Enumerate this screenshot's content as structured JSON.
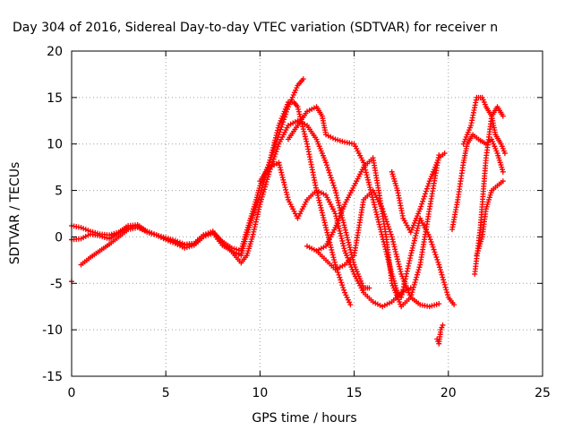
{
  "chart_data": {
    "type": "scatter",
    "title": "Day 304 of 2016, Sidereal Day-to-day VTEC variation (SDTVAR) for receiver n",
    "xlabel": "GPS time / hours",
    "ylabel": "SDTVAR / TECUs",
    "xlim": [
      0,
      25
    ],
    "ylim": [
      -15,
      20
    ],
    "xticks": [
      "0",
      "5",
      "10",
      "15",
      "20",
      "25"
    ],
    "yticks": [
      "-15",
      "-10",
      "-5",
      "0",
      "5",
      "10",
      "15",
      "20"
    ],
    "grid": true,
    "marker": "+",
    "color": "#ff0000",
    "series": [
      {
        "name": "",
        "x": [
          0.0,
          0.5,
          1.0,
          1.5,
          2.0,
          2.5,
          3.0,
          3.5,
          4.0,
          4.5,
          5.0,
          5.5,
          6.0,
          6.5,
          7.0,
          7.5,
          8.0,
          8.5,
          9.0,
          9.2,
          9.5,
          9.8,
          10.0,
          10.3,
          10.5,
          11.0,
          11.5,
          12.0,
          12.3
        ],
        "y": [
          1.2,
          1.0,
          0.6,
          0.3,
          0.2,
          0.5,
          1.2,
          1.3,
          0.6,
          0.2,
          -0.1,
          -0.4,
          -0.8,
          -0.7,
          0.2,
          0.5,
          -0.5,
          -1.2,
          -1.5,
          0.0,
          2.0,
          4.0,
          5.5,
          7.0,
          8.0,
          11.0,
          14.0,
          16.3,
          17.0
        ]
      },
      {
        "name": "",
        "x": [
          0.0,
          0.5,
          1.0,
          1.5,
          2.0,
          2.5,
          3.0,
          3.5,
          4.0,
          4.5,
          5.0,
          5.5,
          6.0,
          6.5,
          7.0,
          7.5,
          8.0,
          8.5,
          9.0,
          9.2,
          9.5,
          10.0,
          10.5,
          11.0,
          11.5,
          11.8,
          12.0,
          12.5,
          13.0,
          13.5,
          14.0,
          14.5,
          14.8
        ],
        "y": [
          -0.3,
          -0.2,
          0.3,
          0.1,
          -0.2,
          0.4,
          1.0,
          1.2,
          0.5,
          0.2,
          -0.3,
          -0.7,
          -1.2,
          -0.9,
          0.0,
          0.4,
          -0.9,
          -1.5,
          -2.0,
          -0.5,
          1.5,
          4.5,
          8.0,
          12.0,
          14.5,
          14.5,
          14.0,
          10.0,
          5.0,
          1.0,
          -3.0,
          -6.0,
          -7.3
        ]
      },
      {
        "name": "",
        "x": [
          0.5,
          1.0,
          1.5,
          2.0,
          2.5,
          3.0,
          3.5,
          4.0,
          4.5,
          5.0,
          5.5,
          6.0,
          6.5,
          7.0,
          7.5,
          8.0,
          8.5,
          9.0,
          9.3,
          9.6,
          10.0,
          10.5,
          11.0,
          11.5,
          12.0,
          12.5,
          13.0,
          13.5,
          14.0,
          14.5,
          15.0,
          15.5,
          15.8
        ],
        "y": [
          -3.0,
          -2.2,
          -1.5,
          -0.8,
          0.0,
          0.8,
          1.0,
          0.6,
          0.2,
          -0.2,
          -0.6,
          -0.9,
          -0.8,
          0.2,
          0.6,
          -0.6,
          -1.6,
          -2.8,
          -2.0,
          0.0,
          3.5,
          7.0,
          10.0,
          12.0,
          12.5,
          12.0,
          10.5,
          8.0,
          5.0,
          1.0,
          -3.0,
          -5.5,
          -5.5
        ]
      },
      {
        "name": "",
        "x": [
          10.0,
          10.5,
          11.0,
          11.5,
          12.0,
          12.5,
          13.0,
          13.5,
          14.0,
          14.5,
          15.0,
          15.5,
          16.0,
          16.5,
          17.0,
          17.5,
          18.0
        ],
        "y": [
          6.0,
          7.5,
          8.0,
          4.0,
          2.0,
          4.0,
          5.0,
          4.5,
          2.5,
          -1.5,
          -4.0,
          -6.0,
          -7.0,
          -7.5,
          -7.0,
          -6.0,
          -5.5
        ]
      },
      {
        "name": "",
        "x": [
          11.5,
          12.0,
          12.5,
          13.0,
          13.3,
          13.5,
          14.0,
          14.5,
          15.0,
          15.5,
          16.0,
          16.5,
          17.0,
          17.3,
          17.5,
          18.0,
          18.5,
          19.0,
          19.5,
          20.0,
          20.3
        ],
        "y": [
          10.5,
          12.0,
          13.5,
          14.0,
          13.0,
          11.0,
          10.5,
          10.2,
          10.0,
          8.0,
          4.0,
          0.0,
          -4.0,
          -6.0,
          -6.5,
          -2.0,
          2.0,
          0.0,
          -3.0,
          -6.5,
          -7.3
        ]
      },
      {
        "name": "",
        "x": [
          12.5,
          13.0,
          13.5,
          14.0,
          14.5,
          15.0,
          15.5,
          16.0,
          16.5,
          17.0,
          17.5,
          18.0,
          18.5,
          19.0,
          19.5
        ],
        "y": [
          -1.0,
          -1.5,
          -2.5,
          -3.5,
          -3.0,
          -2.0,
          4.0,
          5.0,
          3.0,
          0.0,
          -4.0,
          -6.5,
          -7.3,
          -7.5,
          -7.2
        ]
      },
      {
        "name": "",
        "x": [
          13.0,
          13.5,
          14.0,
          14.5,
          15.0,
          15.5,
          16.0,
          16.3,
          16.7,
          17.0,
          17.5,
          18.0,
          18.5,
          19.0,
          19.5
        ],
        "y": [
          -1.5,
          -1.0,
          1.0,
          3.5,
          5.5,
          7.5,
          8.5,
          5.0,
          0.0,
          -5.0,
          -7.5,
          -6.5,
          -3.0,
          3.0,
          8.8
        ]
      },
      {
        "name": "",
        "x": [
          17.0,
          17.3,
          17.6,
          18.0,
          18.5,
          19.0,
          19.5,
          19.8
        ],
        "y": [
          7.0,
          5.0,
          2.0,
          0.5,
          3.0,
          6.0,
          8.5,
          9.0
        ]
      },
      {
        "name": "",
        "x": [
          19.4,
          19.5,
          19.6,
          19.7
        ],
        "y": [
          -11.0,
          -11.5,
          -10.0,
          -9.5
        ]
      },
      {
        "name": "",
        "x": [
          20.2,
          20.5,
          20.8,
          21.0,
          21.3,
          21.6,
          22.0,
          22.3,
          22.6,
          22.9
        ],
        "y": [
          0.8,
          4.0,
          8.0,
          10.0,
          11.0,
          10.5,
          10.0,
          10.5,
          9.0,
          7.0
        ]
      },
      {
        "name": "",
        "x": [
          20.8,
          21.2,
          21.5,
          21.8,
          22.0,
          22.3,
          22.5,
          22.8,
          23.0
        ],
        "y": [
          10.0,
          12.0,
          15.0,
          15.0,
          14.0,
          13.0,
          11.0,
          10.0,
          9.0
        ]
      },
      {
        "name": "",
        "x": [
          21.4,
          21.7,
          22.0,
          22.3,
          22.6,
          22.9
        ],
        "y": [
          -4.0,
          1.0,
          8.5,
          13.0,
          14.0,
          13.0
        ]
      },
      {
        "name": "",
        "x": [
          21.5,
          21.8,
          22.0,
          22.3,
          22.6,
          22.9
        ],
        "y": [
          -2.0,
          0.0,
          3.0,
          5.0,
          5.5,
          6.0
        ]
      },
      {
        "name": "",
        "x": [
          0.0
        ],
        "y": [
          -4.8
        ]
      }
    ]
  }
}
